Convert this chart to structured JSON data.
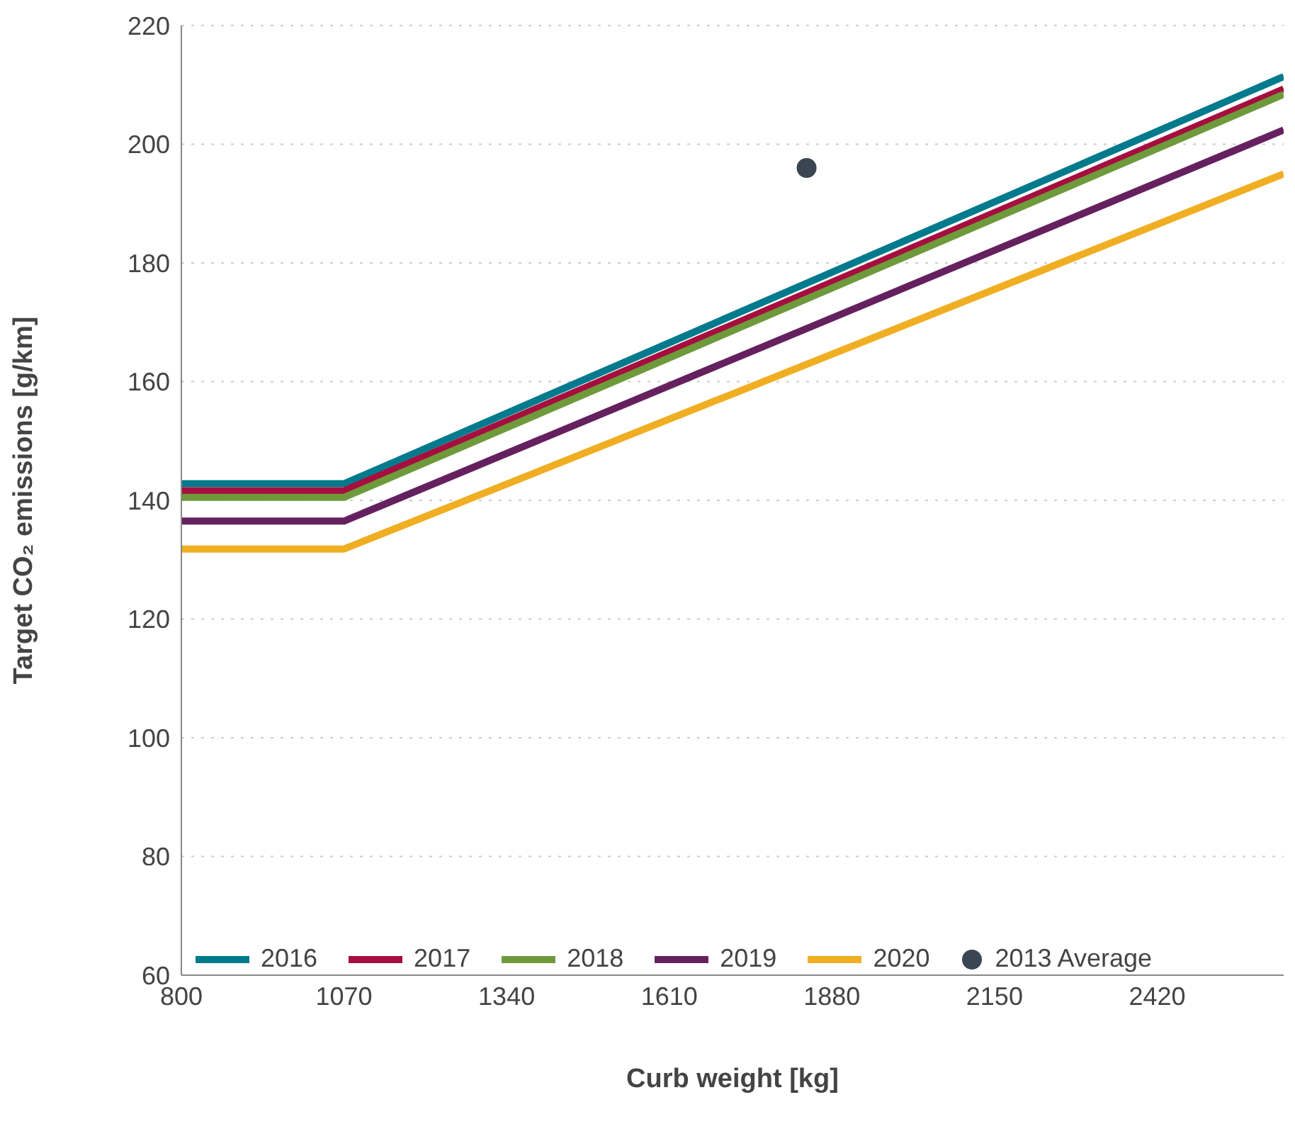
{
  "chart_data": {
    "type": "line",
    "xlabel": "Curb weight [kg]",
    "ylabel": "Target CO₂ emissions [g/km]",
    "xlim": [
      800,
      2630
    ],
    "xticks": [
      800,
      1070,
      1340,
      1610,
      1880,
      2150,
      2420
    ],
    "ylim": [
      60,
      220
    ],
    "yticks": [
      60,
      80,
      100,
      120,
      140,
      160,
      180,
      200,
      220
    ],
    "grid": "y",
    "legend": "bottom",
    "marker": "none",
    "line_style": "solid",
    "series": [
      {
        "name": "2016",
        "color": "#007a8c",
        "x": [
          800,
          1070,
          2630
        ],
        "values": [
          142.8,
          142.8,
          211.4
        ]
      },
      {
        "name": "2017",
        "color": "#a50e3e",
        "x": [
          800,
          1070,
          2630
        ],
        "values": [
          141.6,
          141.6,
          209.3
        ]
      },
      {
        "name": "2018",
        "color": "#6e9a3c",
        "x": [
          800,
          1070,
          2630
        ],
        "values": [
          140.5,
          140.5,
          208.4
        ]
      },
      {
        "name": "2019",
        "color": "#65215f",
        "x": [
          800,
          1070,
          2630
        ],
        "values": [
          136.5,
          136.5,
          202.4
        ]
      },
      {
        "name": "2020",
        "color": "#f0ae22",
        "x": [
          800,
          1070,
          2630
        ],
        "values": [
          131.8,
          131.8,
          195.0
        ]
      },
      {
        "name": "2013 Average",
        "type": "scatter",
        "marker": "circle",
        "color": "#3a4652",
        "x": [
          1838
        ],
        "values": [
          196.0
        ]
      }
    ]
  }
}
